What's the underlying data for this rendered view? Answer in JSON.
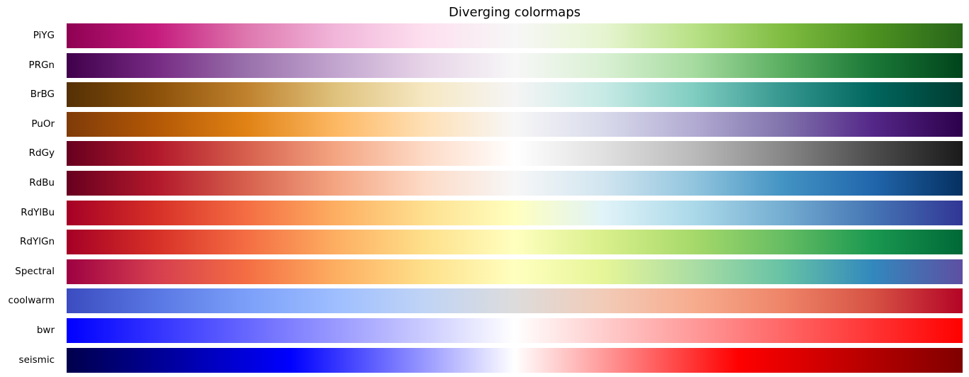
{
  "chart_data": {
    "type": "heatmap",
    "title": "Diverging colormaps",
    "colormaps": [
      {
        "name": "PiYG",
        "stops": [
          "#8e0152",
          "#c51b7d",
          "#de77ae",
          "#f1b6da",
          "#fde0ef",
          "#f7f7f7",
          "#e6f5d0",
          "#b8e186",
          "#7fbc41",
          "#4d9221",
          "#276419"
        ]
      },
      {
        "name": "PRGn",
        "stops": [
          "#40004b",
          "#762a83",
          "#9970ab",
          "#c2a5cf",
          "#e7d4e8",
          "#f7f7f7",
          "#d9f0d3",
          "#a6dba0",
          "#5aae61",
          "#1b7837",
          "#00441b"
        ]
      },
      {
        "name": "BrBG",
        "stops": [
          "#543005",
          "#8c510a",
          "#bf812d",
          "#dfc27d",
          "#f6e8c3",
          "#f5f5f5",
          "#c7eae5",
          "#80cdc1",
          "#35978f",
          "#01665e",
          "#003c30"
        ]
      },
      {
        "name": "PuOr",
        "stops": [
          "#7f3b08",
          "#b35806",
          "#e08214",
          "#fdb863",
          "#fee0b6",
          "#f7f7f7",
          "#d8daeb",
          "#b2abd2",
          "#8073ac",
          "#542788",
          "#2d004b"
        ]
      },
      {
        "name": "RdGy",
        "stops": [
          "#67001f",
          "#b2182b",
          "#d6604d",
          "#f4a582",
          "#fddbc7",
          "#ffffff",
          "#e0e0e0",
          "#bababa",
          "#878787",
          "#4d4d4d",
          "#1a1a1a"
        ]
      },
      {
        "name": "RdBu",
        "stops": [
          "#67001f",
          "#b2182b",
          "#d6604d",
          "#f4a582",
          "#fddbc7",
          "#f7f7f7",
          "#d1e5f0",
          "#92c5de",
          "#4393c3",
          "#2166ac",
          "#053061"
        ]
      },
      {
        "name": "RdYlBu",
        "stops": [
          "#a50026",
          "#d73027",
          "#f46d43",
          "#fdae61",
          "#fee090",
          "#ffffbf",
          "#e0f3f8",
          "#abd9e9",
          "#74add1",
          "#4575b4",
          "#313695"
        ]
      },
      {
        "name": "RdYlGn",
        "stops": [
          "#a50026",
          "#d73027",
          "#f46d43",
          "#fdae61",
          "#fee08b",
          "#ffffbf",
          "#d9ef8b",
          "#a6d96a",
          "#66bd63",
          "#1a9850",
          "#006837"
        ]
      },
      {
        "name": "Spectral",
        "stops": [
          "#9e0142",
          "#d53e4f",
          "#f46d43",
          "#fdae61",
          "#fee08b",
          "#ffffbf",
          "#e6f598",
          "#abdda4",
          "#66c2a5",
          "#3288bd",
          "#5e4fa2"
        ]
      },
      {
        "name": "coolwarm",
        "stops": [
          "#3b4cc0",
          "#5977e3",
          "#7b9ff9",
          "#9ebeff",
          "#c0d4f5",
          "#dddcdc",
          "#f2cbb7",
          "#f7ac8e",
          "#ee8468",
          "#d65244",
          "#b40426"
        ]
      },
      {
        "name": "bwr",
        "stops": [
          "#0000ff",
          "#ffffff",
          "#ff0000"
        ]
      },
      {
        "name": "seismic",
        "stops": [
          "#00004c",
          "#0000ff",
          "#ffffff",
          "#ff0000",
          "#800000"
        ]
      }
    ]
  }
}
